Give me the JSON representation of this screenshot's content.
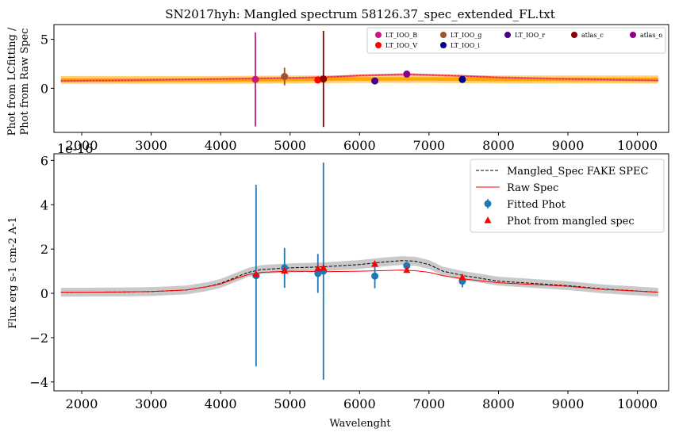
{
  "chart_data": [
    {
      "type": "scatter",
      "title": "SN2017hyh: Mangled spectrum 58126.37_spec_extended_FL.txt",
      "ylabel_line1": "Phot from LCfitting /",
      "ylabel_line2": "Phot from Raw Spec",
      "xlim": [
        1600,
        10450
      ],
      "ylim": [
        -4.5,
        6.5
      ],
      "xticks": [
        2000,
        3000,
        4000,
        5000,
        6000,
        7000,
        8000,
        9000,
        10000
      ],
      "yticks": [
        0,
        5
      ],
      "offset_text": "1e-16",
      "ratio_curve": {
        "x": [
          1700,
          3000,
          4000,
          4500,
          5000,
          5500,
          6000,
          6700,
          7500,
          8000,
          9000,
          10300
        ],
        "y": [
          0.75,
          0.85,
          0.95,
          1.0,
          1.05,
          1.12,
          1.3,
          1.42,
          1.25,
          1.1,
          0.95,
          0.8
        ]
      },
      "band": {
        "x": [
          1700,
          3000,
          4000,
          5000,
          6000,
          7000,
          8000,
          9000,
          10300
        ],
        "y": [
          0.85,
          0.85,
          0.85,
          0.9,
          0.95,
          0.95,
          0.9,
          0.9,
          0.9
        ]
      },
      "points": [
        {
          "name": "LT_IOO_B",
          "x": 4500,
          "y": 0.9,
          "yerr": 4.8,
          "color": "#c71585"
        },
        {
          "name": "LT_IOO_g",
          "x": 4920,
          "y": 1.2,
          "yerr": 0.9,
          "color": "#a0522d"
        },
        {
          "name": "LT_IOO_V",
          "x": 5400,
          "y": 0.85,
          "yerr": 0.35,
          "color": "#ff0000"
        },
        {
          "name": "atlas_c",
          "x": 5480,
          "y": 0.95,
          "yerr": 4.9,
          "color": "#8b0000"
        },
        {
          "name": "LT_IOO_r",
          "x": 6220,
          "y": 0.75,
          "yerr": 0.3,
          "color": "#4b0082"
        },
        {
          "name": "atlas_o",
          "x": 6680,
          "y": 1.45,
          "yerr": 0.15,
          "color": "#8b008b"
        },
        {
          "name": "LT_IOO_i",
          "x": 7480,
          "y": 0.9,
          "yerr": 0.2,
          "color": "#00008b"
        }
      ],
      "legend": [
        {
          "label": "LT_IOO_B",
          "color": "#c71585"
        },
        {
          "label": "LT_IOO_V",
          "color": "#ff0000"
        },
        {
          "label": "LT_IOO_g",
          "color": "#a0522d"
        },
        {
          "label": "LT_IOO_i",
          "color": "#00008b"
        },
        {
          "label": "LT_IOO_r",
          "color": "#4b0082"
        },
        {
          "label": "atlas_c",
          "color": "#8b0000"
        },
        {
          "label": "atlas_o",
          "color": "#8b008b"
        }
      ]
    },
    {
      "type": "line",
      "xlabel": "Wavelenght",
      "ylabel": "Flux erg s-1 cm-2 A-1",
      "xlim": [
        1600,
        10450
      ],
      "ylim": [
        -4.4,
        6.3
      ],
      "xticks": [
        2000,
        3000,
        4000,
        5000,
        6000,
        7000,
        8000,
        9000,
        10000
      ],
      "yticks": [
        -4,
        -2,
        0,
        2,
        4,
        6
      ],
      "mangled": {
        "x": [
          1700,
          2500,
          3000,
          3500,
          3800,
          4000,
          4200,
          4400,
          4600,
          5000,
          5500,
          6000,
          6300,
          6600,
          6800,
          7000,
          7200,
          7500,
          8000,
          8500,
          9000,
          9500,
          10300
        ],
        "y": [
          0.05,
          0.06,
          0.08,
          0.15,
          0.3,
          0.45,
          0.7,
          0.95,
          1.08,
          1.15,
          1.2,
          1.3,
          1.4,
          1.48,
          1.45,
          1.3,
          1.0,
          0.8,
          0.55,
          0.45,
          0.35,
          0.2,
          0.05
        ]
      },
      "raw": {
        "x": [
          1700,
          2500,
          3000,
          3500,
          3800,
          4000,
          4200,
          4400,
          4600,
          5000,
          5500,
          6000,
          6300,
          6600,
          6800,
          7000,
          7200,
          7500,
          8000,
          8500,
          9000,
          9500,
          10300
        ],
        "y": [
          0.05,
          0.06,
          0.08,
          0.15,
          0.3,
          0.42,
          0.65,
          0.85,
          0.95,
          1.0,
          0.98,
          1.0,
          1.02,
          1.05,
          1.02,
          0.95,
          0.8,
          0.65,
          0.48,
          0.4,
          0.32,
          0.18,
          0.05
        ]
      },
      "band_width": 0.2,
      "fitted_phot": [
        {
          "x": 4510,
          "y": 0.8,
          "yerr": 4.1
        },
        {
          "x": 4920,
          "y": 1.15,
          "yerr": 0.9
        },
        {
          "x": 5400,
          "y": 0.9,
          "yerr": 0.88
        },
        {
          "x": 5480,
          "y": 1.0,
          "yerr": 4.9
        },
        {
          "x": 6220,
          "y": 0.78,
          "yerr": 0.55
        },
        {
          "x": 6680,
          "y": 1.25,
          "yerr": 0.1
        },
        {
          "x": 7480,
          "y": 0.55,
          "yerr": 0.28
        }
      ],
      "mangled_phot": [
        {
          "x": 4510,
          "y": 0.85
        },
        {
          "x": 4920,
          "y": 1.02
        },
        {
          "x": 5400,
          "y": 1.12
        },
        {
          "x": 5480,
          "y": 1.15
        },
        {
          "x": 6220,
          "y": 1.32
        },
        {
          "x": 6680,
          "y": 1.05
        },
        {
          "x": 7480,
          "y": 0.72
        }
      ],
      "legend": [
        {
          "label": "Mangled_Spec FAKE SPEC"
        },
        {
          "label": "Raw Spec"
        },
        {
          "label": "Fitted Phot"
        },
        {
          "label": "Phot from mangled spec"
        }
      ],
      "colors": {
        "mangled": "#000000",
        "raw": "#ff0000",
        "fitted": "#1f77b4",
        "mangled_phot": "#ff0000",
        "band": "#bbbbbb"
      }
    }
  ]
}
